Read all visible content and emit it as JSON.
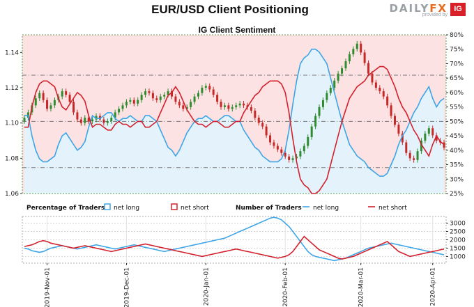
{
  "header": {
    "title": "EUR/USD Client Positioning",
    "subtitle": "IG Client Sentiment",
    "brand_name": "DAILYFX",
    "brand_tagline": "provided by",
    "brand_badge": "IG"
  },
  "legend": {
    "pct_title": "Percentage of Traders",
    "pct_long": "net long",
    "pct_short": "net short",
    "num_title": "Number of Traders",
    "num_long": "net long",
    "num_short": "net short"
  },
  "colors": {
    "long": "#3da5e6",
    "short": "#d2202c",
    "up": "#2e8b2e",
    "down": "#c62828",
    "bg_short": "#fce2e2",
    "bg_long": "#e4f2fb"
  },
  "chart_data": [
    {
      "type": "candlestick",
      "title": "EUR/USD Client Positioning",
      "ylim": [
        1.06,
        1.15
      ],
      "yticks": [
        1.06,
        1.08,
        1.1,
        1.12,
        1.14
      ],
      "y2label_ticks": [
        "25%",
        "30%",
        "35%",
        "40%",
        "45%",
        "50%",
        "55%",
        "60%",
        "65%",
        "70%",
        "75%",
        "80%"
      ],
      "y2lim": [
        25,
        80
      ],
      "x_ticks": [
        "2019-Nov-01",
        "2019-Dec-01",
        "2020-Jan-01",
        "2020-Feb-01",
        "2020-Mar-01",
        "2020-Apr-01"
      ],
      "close": [
        1.103,
        1.106,
        1.11,
        1.114,
        1.117,
        1.113,
        1.108,
        1.11,
        1.113,
        1.115,
        1.118,
        1.116,
        1.112,
        1.106,
        1.102,
        1.1,
        1.103,
        1.101,
        1.102,
        1.104,
        1.102,
        1.1,
        1.101,
        1.103,
        1.106,
        1.108,
        1.11,
        1.112,
        1.113,
        1.111,
        1.113,
        1.116,
        1.118,
        1.117,
        1.114,
        1.113,
        1.115,
        1.116,
        1.118,
        1.115,
        1.112,
        1.11,
        1.108,
        1.109,
        1.112,
        1.115,
        1.117,
        1.12,
        1.121,
        1.119,
        1.116,
        1.112,
        1.109,
        1.11,
        1.108,
        1.109,
        1.11,
        1.111,
        1.11,
        1.109,
        1.107,
        1.103,
        1.1,
        1.098,
        1.093,
        1.089,
        1.087,
        1.085,
        1.083,
        1.081,
        1.079,
        1.08,
        1.081,
        1.084,
        1.087,
        1.092,
        1.098,
        1.104,
        1.109,
        1.113,
        1.117,
        1.12,
        1.124,
        1.128,
        1.131,
        1.135,
        1.139,
        1.142,
        1.145,
        1.14,
        1.134,
        1.128,
        1.123,
        1.12,
        1.118,
        1.115,
        1.11,
        1.104,
        1.099,
        1.094,
        1.089,
        1.083,
        1.08,
        1.079,
        1.084,
        1.09,
        1.094,
        1.097,
        1.093,
        1.09,
        1.089,
        1.086
      ],
      "series_pct": [
        {
          "name": "net long",
          "values": [
            52,
            52,
            45,
            40,
            37,
            36,
            36,
            37,
            38,
            42,
            45,
            46,
            44,
            42,
            40,
            41,
            43,
            48,
            52,
            51,
            51,
            52,
            53,
            53,
            51,
            50,
            51,
            51,
            52,
            51,
            50,
            50,
            52,
            52,
            51,
            50,
            47,
            44,
            41,
            40,
            38,
            40,
            43,
            46,
            48,
            50,
            51,
            51,
            52,
            51,
            50,
            50,
            51,
            52,
            52,
            51,
            50,
            50,
            47,
            45,
            43,
            41,
            40,
            38,
            37,
            36,
            36,
            36,
            37,
            40,
            47,
            56,
            64,
            70,
            72,
            73,
            75,
            75,
            74,
            72,
            70,
            65,
            60,
            55,
            50,
            46,
            42,
            40,
            38,
            37,
            36,
            34,
            33,
            32,
            31,
            31,
            32,
            35,
            38,
            42,
            45,
            47,
            50,
            53,
            55,
            58,
            60,
            62,
            58,
            55,
            57,
            58
          ]
        },
        {
          "name": "net short",
          "values": [
            48,
            48,
            55,
            60,
            63,
            64,
            64,
            63,
            62,
            58,
            55,
            54,
            56,
            58,
            60,
            59,
            57,
            52,
            48,
            49,
            49,
            48,
            47,
            47,
            49,
            50,
            49,
            49,
            48,
            49,
            50,
            50,
            48,
            48,
            49,
            50,
            53,
            56,
            59,
            60,
            62,
            60,
            57,
            54,
            52,
            50,
            49,
            49,
            48,
            49,
            50,
            50,
            49,
            48,
            48,
            49,
            50,
            50,
            53,
            55,
            57,
            59,
            60,
            62,
            63,
            64,
            64,
            64,
            63,
            60,
            53,
            44,
            36,
            30,
            28,
            27,
            25,
            25,
            26,
            28,
            30,
            35,
            40,
            45,
            50,
            54,
            58,
            60,
            62,
            63,
            64,
            66,
            67,
            68,
            69,
            69,
            68,
            65,
            62,
            58,
            55,
            53,
            50,
            47,
            45,
            42,
            40,
            38,
            42,
            45,
            43,
            42
          ]
        }
      ],
      "series_num": [
        {
          "name": "net long",
          "values": [
            1500,
            1450,
            1350,
            1300,
            1250,
            1300,
            1400,
            1500,
            1550,
            1600,
            1650,
            1600,
            1550,
            1500,
            1450,
            1500,
            1550,
            1600,
            1650,
            1700,
            1650,
            1600,
            1550,
            1500,
            1450,
            1500,
            1550,
            1600,
            1650,
            1700,
            1650,
            1600,
            1550,
            1500,
            1450,
            1400,
            1350,
            1300,
            1350,
            1400,
            1450,
            1500,
            1550,
            1600,
            1650,
            1700,
            1750,
            1800,
            1850,
            1900,
            1950,
            2000,
            2050,
            2100,
            2200,
            2300,
            2400,
            2500,
            2600,
            2700,
            2800,
            2900,
            3000,
            3100,
            3200,
            3300,
            3350,
            3300,
            3200,
            3000,
            2800,
            2500,
            2200,
            1900,
            1600,
            1300,
            1100,
            1000,
            950,
            900,
            850,
            800,
            750,
            800,
            850,
            900,
            1000,
            1100,
            1200,
            1300,
            1400,
            1500,
            1550,
            1600,
            1650,
            1700,
            1750,
            1800,
            1750,
            1700,
            1650,
            1600,
            1550,
            1500,
            1450,
            1400,
            1350,
            1300,
            1250,
            1200,
            1150,
            1100
          ]
        },
        {
          "name": "net short",
          "values": [
            1600,
            1650,
            1700,
            1800,
            1900,
            1950,
            1900,
            1800,
            1750,
            1700,
            1650,
            1600,
            1550,
            1500,
            1550,
            1600,
            1650,
            1600,
            1550,
            1500,
            1450,
            1400,
            1350,
            1300,
            1350,
            1400,
            1450,
            1500,
            1550,
            1600,
            1650,
            1700,
            1750,
            1700,
            1650,
            1600,
            1550,
            1500,
            1450,
            1400,
            1350,
            1300,
            1250,
            1200,
            1150,
            1100,
            1050,
            1000,
            1050,
            1100,
            1150,
            1200,
            1250,
            1300,
            1350,
            1400,
            1450,
            1400,
            1350,
            1300,
            1250,
            1200,
            1150,
            1100,
            1050,
            1000,
            950,
            900,
            950,
            1000,
            1100,
            1300,
            1600,
            1900,
            2200,
            2000,
            1800,
            1600,
            1400,
            1300,
            1200,
            1100,
            1000,
            900,
            850,
            900,
            950,
            1000,
            1100,
            1200,
            1300,
            1400,
            1500,
            1600,
            1700,
            1800,
            1900,
            1700,
            1500,
            1300,
            1200,
            1100,
            1000,
            1050,
            1100,
            1150,
            1200,
            1250,
            1300,
            1350,
            1400,
            1450
          ]
        }
      ],
      "num_yticks": [
        1000,
        1500,
        2000,
        2500,
        3000
      ],
      "num_ylim": [
        600,
        3400
      ]
    }
  ]
}
